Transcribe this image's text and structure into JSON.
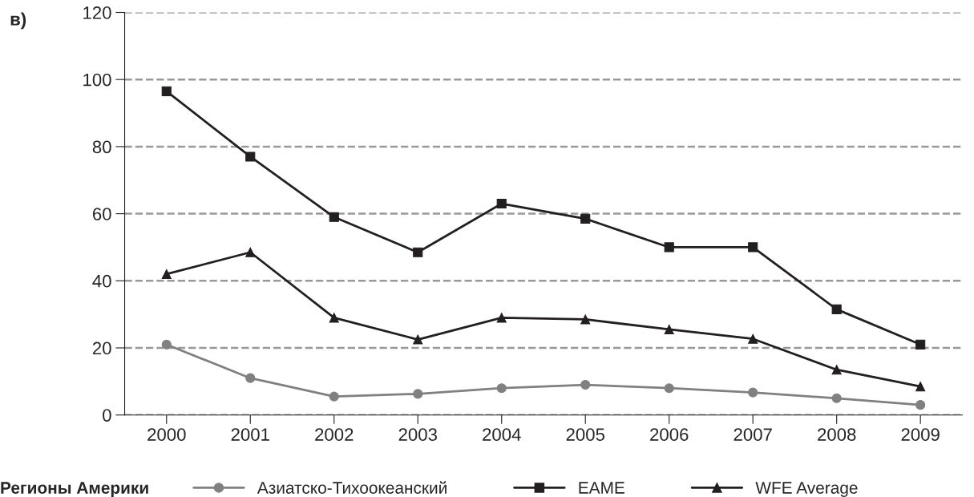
{
  "chart_data": {
    "type": "line",
    "annotations": [
      "в)"
    ],
    "legend_title": "Регионы Америки",
    "x": [
      2000,
      2001,
      2002,
      2003,
      2004,
      2005,
      2006,
      2007,
      2008,
      2009
    ],
    "series": [
      {
        "name": "Азиатско-Тихоокеанский",
        "color": "#808080",
        "marker": "circle",
        "values": [
          21,
          11,
          5.5,
          6.3,
          8,
          9,
          8,
          6.7,
          5,
          3
        ]
      },
      {
        "name": "EAME",
        "color": "#231f20",
        "marker": "square",
        "values": [
          96.5,
          77,
          59,
          48.5,
          63,
          58.5,
          50,
          50,
          31.5,
          21
        ]
      },
      {
        "name": "WFE Average",
        "color": "#231f20",
        "marker": "triangle",
        "values": [
          42,
          48.5,
          29,
          22.5,
          29,
          28.5,
          25.5,
          22.7,
          13.5,
          8.5
        ]
      }
    ],
    "xlim": [
      1999.5,
      2009.5
    ],
    "xticks": [
      2000,
      2001,
      2002,
      2003,
      2004,
      2005,
      2006,
      2007,
      2008,
      2009
    ],
    "ylim": [
      0,
      120
    ],
    "yticks": [
      0,
      20,
      40,
      60,
      80,
      100,
      120
    ],
    "grid": "y",
    "legend": "bottom",
    "line_style": "solid"
  }
}
